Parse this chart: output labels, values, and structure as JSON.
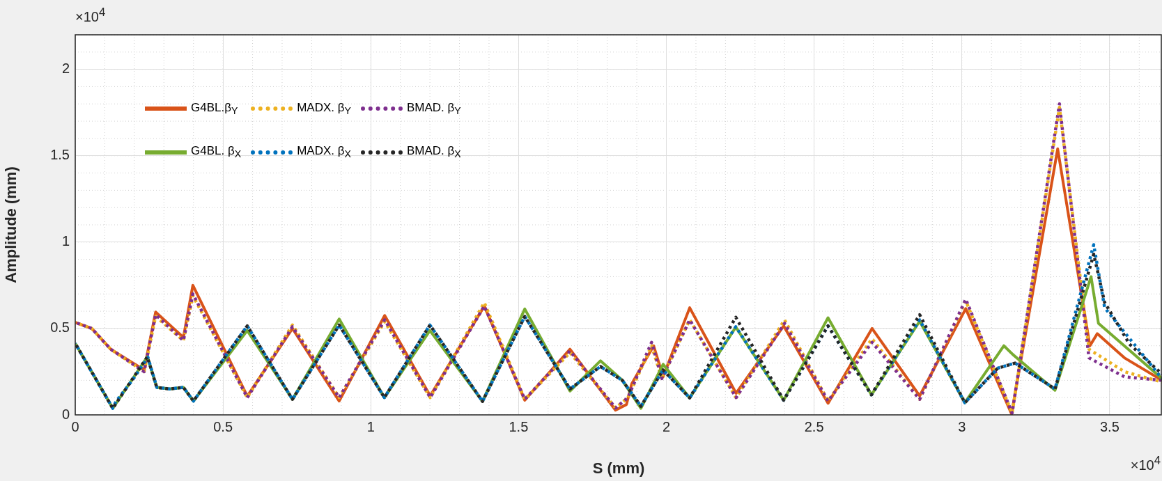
{
  "chart_data": {
    "type": "line",
    "xlabel": "S (mm)",
    "ylabel": "Amplitude (mm)",
    "annotations": [
      "×10$^{4}$",
      "×10$^{4}$"
    ],
    "xlim": [
      0,
      3.677
    ],
    "xticks": [
      0,
      0.5,
      1,
      1.5,
      2,
      2.5,
      3,
      3.5
    ],
    "ylim": [
      0,
      2.2
    ],
    "yticks": [
      0,
      0.5,
      1,
      1.5,
      2
    ],
    "grid": true,
    "legend": "top left",
    "marker": "none",
    "series": [
      {
        "name": "G4BL.β$_{Y}$",
        "color": "#d95319",
        "line_style": "solid",
        "x": [
          0,
          0.056,
          0.12,
          0.233,
          0.272,
          0.366,
          0.398,
          0.582,
          0.735,
          0.893,
          1.047,
          1.201,
          1.384,
          1.521,
          1.674,
          1.828,
          1.865,
          1.883,
          1.957,
          1.989,
          2.079,
          2.236,
          2.397,
          2.547,
          2.696,
          2.857,
          3.013,
          3.168,
          3.324,
          3.433,
          3.458,
          3.55,
          3.677
        ],
        "values": [
          0.535,
          0.5,
          0.38,
          0.26,
          0.595,
          0.448,
          0.75,
          0.108,
          0.5,
          0.08,
          0.575,
          0.11,
          0.63,
          0.085,
          0.38,
          0.027,
          0.06,
          0.18,
          0.4,
          0.22,
          0.62,
          0.125,
          0.515,
          0.067,
          0.5,
          0.11,
          0.615,
          0.005,
          1.54,
          0.4,
          0.47,
          0.33,
          0.2
        ]
      },
      {
        "name": "MADX. β$_{Y}$",
        "color": "#edb120",
        "line_style": "dotted",
        "x": [
          0,
          0.056,
          0.12,
          0.233,
          0.272,
          0.366,
          0.398,
          0.582,
          0.735,
          0.893,
          1.047,
          1.201,
          1.384,
          1.521,
          1.674,
          1.828,
          1.87,
          1.95,
          1.985,
          2.079,
          2.236,
          2.4,
          2.547,
          2.696,
          2.857,
          3.013,
          3.17,
          3.33,
          3.43,
          3.55,
          3.677
        ],
        "values": [
          0.535,
          0.5,
          0.38,
          0.25,
          0.57,
          0.43,
          0.69,
          0.1,
          0.52,
          0.1,
          0.54,
          0.1,
          0.65,
          0.09,
          0.36,
          0.04,
          0.1,
          0.4,
          0.21,
          0.55,
          0.1,
          0.55,
          0.08,
          0.44,
          0.09,
          0.66,
          0.01,
          1.78,
          0.38,
          0.25,
          0.19
        ]
      },
      {
        "name": "BMAD. β$_{Y}$",
        "color": "#7e2f8e",
        "line_style": "dotted",
        "x": [
          0,
          0.056,
          0.12,
          0.233,
          0.272,
          0.366,
          0.398,
          0.582,
          0.735,
          0.893,
          1.047,
          1.201,
          1.384,
          1.521,
          1.674,
          1.828,
          1.87,
          1.95,
          1.985,
          2.079,
          2.236,
          2.4,
          2.547,
          2.696,
          2.857,
          3.013,
          3.17,
          3.33,
          3.43,
          3.55,
          3.677
        ],
        "values": [
          0.535,
          0.5,
          0.38,
          0.25,
          0.58,
          0.43,
          0.7,
          0.1,
          0.51,
          0.1,
          0.55,
          0.1,
          0.63,
          0.09,
          0.37,
          0.04,
          0.1,
          0.42,
          0.21,
          0.55,
          0.1,
          0.53,
          0.08,
          0.42,
          0.09,
          0.67,
          0.01,
          1.8,
          0.33,
          0.22,
          0.2
        ]
      },
      {
        "name": "G4BL. β$_{X}$",
        "color": "#77ac30",
        "line_style": "solid",
        "x": [
          0,
          0.127,
          0.244,
          0.276,
          0.32,
          0.366,
          0.4,
          0.582,
          0.735,
          0.893,
          1.046,
          1.2,
          1.378,
          1.521,
          1.674,
          1.777,
          1.851,
          1.914,
          1.989,
          2.079,
          2.235,
          2.397,
          2.547,
          2.694,
          2.857,
          3.01,
          3.142,
          3.172,
          3.315,
          3.437,
          3.462,
          3.677
        ],
        "values": [
          0.414,
          0.038,
          0.336,
          0.159,
          0.15,
          0.159,
          0.08,
          0.488,
          0.09,
          0.555,
          0.1,
          0.488,
          0.078,
          0.613,
          0.138,
          0.313,
          0.2,
          0.038,
          0.293,
          0.098,
          0.508,
          0.085,
          0.562,
          0.116,
          0.542,
          0.071,
          0.4,
          0.35,
          0.142,
          0.8,
          0.53,
          0.21
        ]
      },
      {
        "name": "MADX. β$_{X}$",
        "color": "#0072bd",
        "line_style": "dotted",
        "x": [
          0,
          0.127,
          0.138,
          0.193,
          0.246,
          0.276,
          0.32,
          0.366,
          0.4,
          0.582,
          0.735,
          0.893,
          1.046,
          1.2,
          1.378,
          1.521,
          1.674,
          1.777,
          1.851,
          1.914,
          1.989,
          2.079,
          2.235,
          2.397,
          2.547,
          2.694,
          2.857,
          3.01,
          3.121,
          3.18,
          3.315,
          3.446,
          3.483,
          3.677
        ],
        "values": [
          0.414,
          0.038,
          0.078,
          0.2,
          0.333,
          0.159,
          0.15,
          0.159,
          0.08,
          0.515,
          0.09,
          0.52,
          0.1,
          0.52,
          0.078,
          0.57,
          0.15,
          0.28,
          0.2,
          0.05,
          0.26,
          0.098,
          0.51,
          0.085,
          0.515,
          0.116,
          0.55,
          0.07,
          0.27,
          0.3,
          0.15,
          0.985,
          0.62,
          0.21
        ]
      },
      {
        "name": "BMAD. β$_{X}$",
        "color": "#262626",
        "line_style": "dotted",
        "x": [
          0,
          0.127,
          0.244,
          0.276,
          0.32,
          0.366,
          0.4,
          0.582,
          0.735,
          0.893,
          1.046,
          1.2,
          1.378,
          1.521,
          1.674,
          1.777,
          1.851,
          1.914,
          1.989,
          2.079,
          2.235,
          2.397,
          2.547,
          2.694,
          2.857,
          3.01,
          3.121,
          3.18,
          3.315,
          3.446,
          3.483,
          3.567,
          3.677
        ],
        "values": [
          0.414,
          0.038,
          0.336,
          0.159,
          0.15,
          0.159,
          0.08,
          0.515,
          0.09,
          0.52,
          0.1,
          0.52,
          0.078,
          0.57,
          0.15,
          0.28,
          0.2,
          0.05,
          0.26,
          0.098,
          0.565,
          0.085,
          0.515,
          0.116,
          0.58,
          0.07,
          0.27,
          0.3,
          0.15,
          0.93,
          0.65,
          0.41,
          0.236
        ]
      }
    ]
  }
}
